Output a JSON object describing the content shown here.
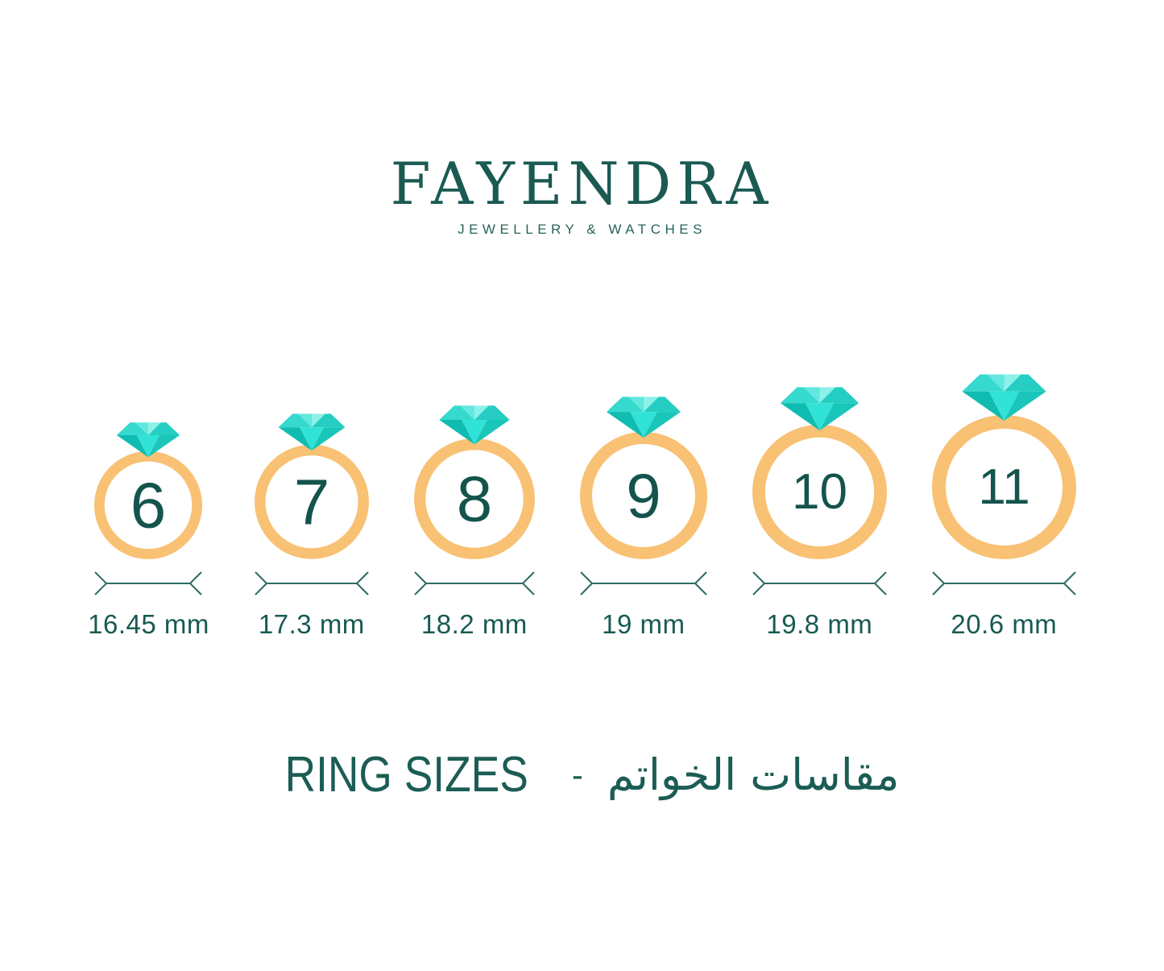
{
  "brand": {
    "name": "FAYENDRA",
    "tagline": "JEWELLERY & WATCHES"
  },
  "footer": {
    "title_en": "RING SIZES",
    "separator": "-",
    "title_ar": "مقاسات الخواتم"
  },
  "colors": {
    "text_teal": "#175a52",
    "number_teal": "#14544d",
    "arrow_teal": "#2e6c65",
    "band_orange": "#f8c173",
    "diamond_crown_left": "#36d9ce",
    "diamond_crown_center_left": "#62e8de",
    "diamond_crown_center_right": "#8cf1e9",
    "diamond_crown_right": "#25cdc2",
    "diamond_pavilion_left": "#10bcb1",
    "diamond_pavilion_center": "#31e2d7",
    "diamond_pavilion_right": "#1ac5ba"
  },
  "rings": [
    {
      "size": "6",
      "diameter_label": "16.45 mm"
    },
    {
      "size": "7",
      "diameter_label": "17.3 mm"
    },
    {
      "size": "8",
      "diameter_label": "18.2 mm"
    },
    {
      "size": "9",
      "diameter_label": "19 mm"
    },
    {
      "size": "10",
      "diameter_label": "19.8 mm"
    },
    {
      "size": "11",
      "diameter_label": "20.6 mm"
    }
  ],
  "chart_data": {
    "type": "table",
    "title": "RING SIZES - مقاسات الخواتم",
    "columns": [
      "ring_size",
      "diameter_mm"
    ],
    "rows": [
      [
        6,
        16.45
      ],
      [
        7,
        17.3
      ],
      [
        8,
        18.2
      ],
      [
        9,
        19
      ],
      [
        10,
        19.8
      ],
      [
        11,
        20.6
      ]
    ]
  }
}
